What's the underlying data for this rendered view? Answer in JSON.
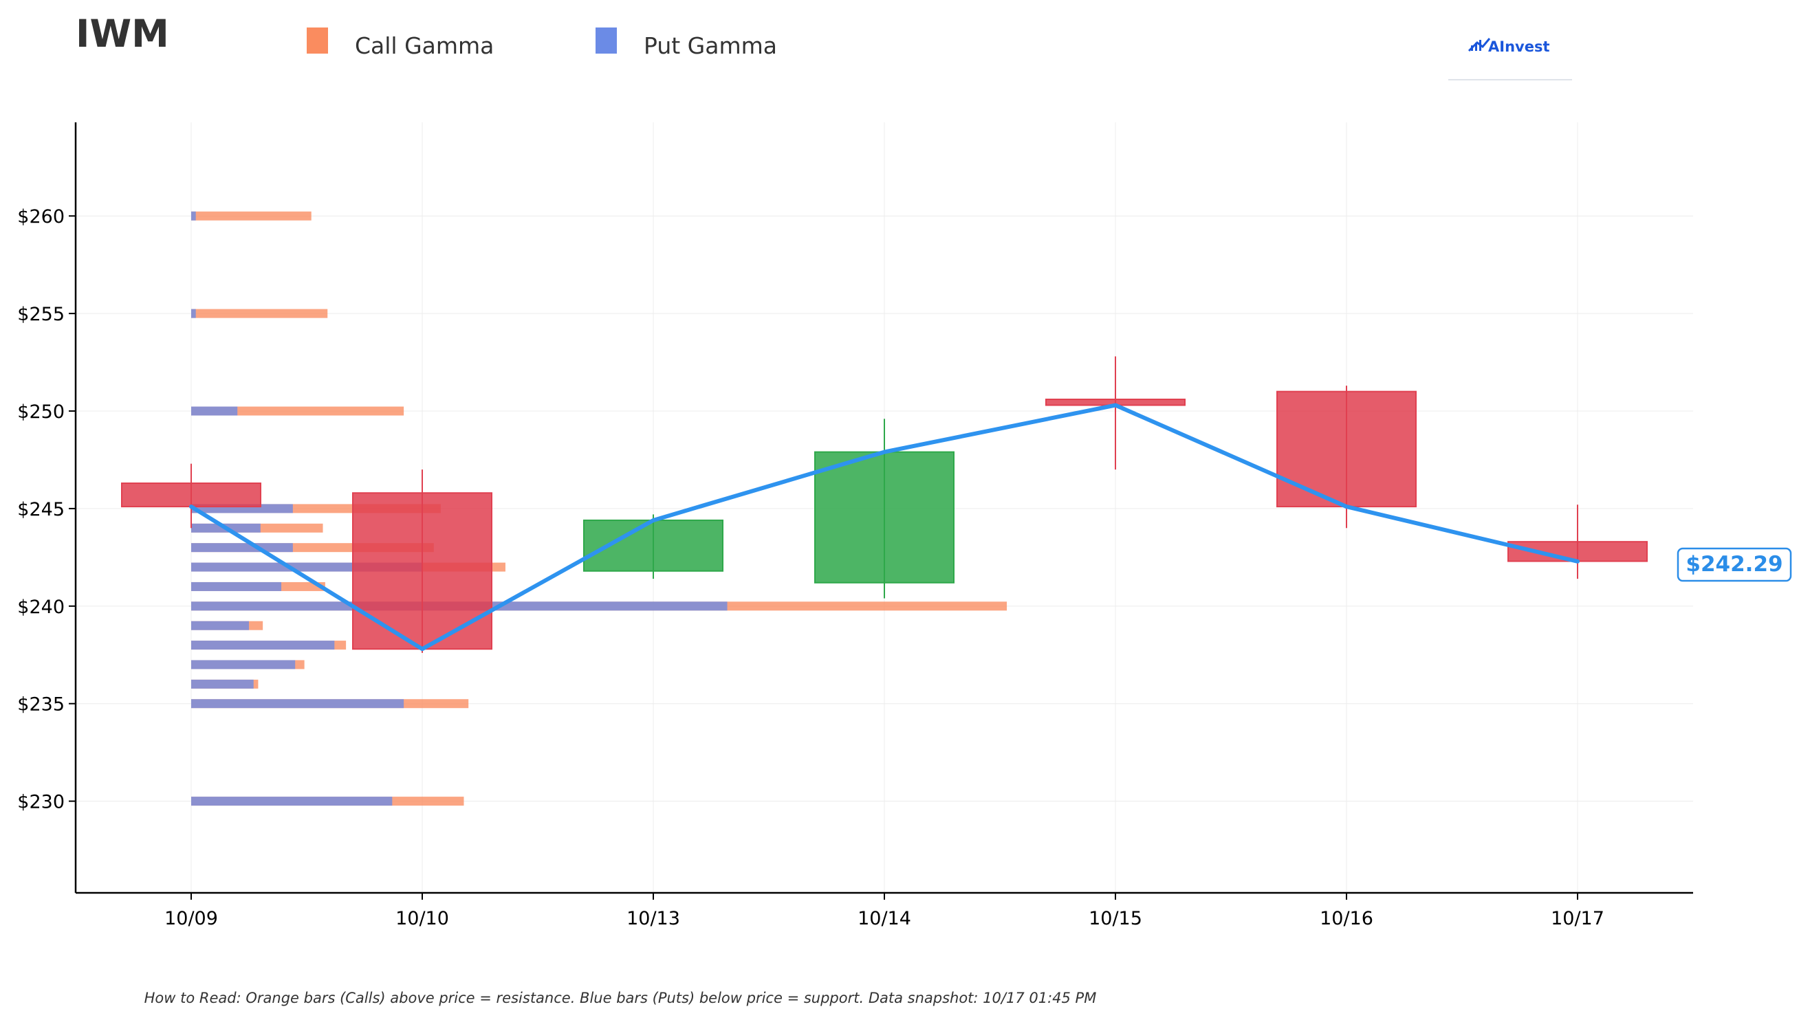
{
  "title": "IWM",
  "brand": {
    "name": "AInvest",
    "icon": "chart-logo-icon",
    "color": "#1a56db"
  },
  "footnote": "How to Read: Orange bars (Calls) above price = resistance. Blue bars (Puts) below price = support. Data snapshot: 10/17 01:45 PM",
  "colors": {
    "call": "#fa8c5f",
    "put": "#6b8be6",
    "up": "#2ea84a",
    "down": "#e04050",
    "line": "#2e93ef",
    "price_label": "#2b8de8"
  },
  "chart_data": {
    "type": "candlestick",
    "title": "IWM",
    "categories": [
      "10/09",
      "10/10",
      "10/13",
      "10/14",
      "10/15",
      "10/16",
      "10/17"
    ],
    "ylim": [
      225.3,
      264.8
    ],
    "yticks": [
      230,
      235,
      240,
      245,
      250,
      255,
      260
    ],
    "ytick_labels": [
      "$230",
      "$235",
      "$240",
      "$245",
      "$250",
      "$255",
      "$260"
    ],
    "grid": true,
    "legend": {
      "position": "top-left",
      "entries": [
        "Call Gamma",
        "Put Gamma"
      ]
    },
    "candles": [
      {
        "date": "10/09",
        "open": 246.3,
        "close": 245.1,
        "high": 247.3,
        "low": 244.0
      },
      {
        "date": "10/10",
        "open": 245.8,
        "close": 237.8,
        "high": 247.0,
        "low": 237.6
      },
      {
        "date": "10/13",
        "open": 241.8,
        "close": 244.4,
        "high": 244.7,
        "low": 241.4
      },
      {
        "date": "10/14",
        "open": 241.2,
        "close": 247.9,
        "high": 249.6,
        "low": 240.4
      },
      {
        "date": "10/15",
        "open": 250.6,
        "close": 250.3,
        "high": 252.8,
        "low": 247.0
      },
      {
        "date": "10/16",
        "open": 251.0,
        "close": 245.1,
        "high": 251.3,
        "low": 244.0
      },
      {
        "date": "10/17",
        "open": 243.3,
        "close": 242.3,
        "high": 245.2,
        "low": 241.4
      }
    ],
    "close_line": [
      245.1,
      237.8,
      244.4,
      247.9,
      250.3,
      245.1,
      242.29
    ],
    "last_price": 242.29,
    "last_price_label": "$242.29",
    "gamma": [
      {
        "strike": 260,
        "put": 0.02,
        "call": 0.52
      },
      {
        "strike": 255,
        "put": 0.02,
        "call": 0.59
      },
      {
        "strike": 250,
        "put": 0.2,
        "call": 0.92
      },
      {
        "strike": 245,
        "put": 0.44,
        "call": 1.08
      },
      {
        "strike": 244,
        "put": 0.3,
        "call": 0.57
      },
      {
        "strike": 243,
        "put": 0.44,
        "call": 1.05
      },
      {
        "strike": 242,
        "put": 1.0,
        "call": 1.36
      },
      {
        "strike": 241,
        "put": 0.39,
        "call": 0.58
      },
      {
        "strike": 240,
        "put": 2.32,
        "call": 3.53
      },
      {
        "strike": 239,
        "put": 0.25,
        "call": 0.31
      },
      {
        "strike": 238,
        "put": 0.62,
        "call": 0.67
      },
      {
        "strike": 237,
        "put": 0.45,
        "call": 0.49
      },
      {
        "strike": 236,
        "put": 0.27,
        "call": 0.29
      },
      {
        "strike": 235,
        "put": 0.92,
        "call": 1.2
      },
      {
        "strike": 230,
        "put": 0.87,
        "call": 1.18
      }
    ]
  }
}
